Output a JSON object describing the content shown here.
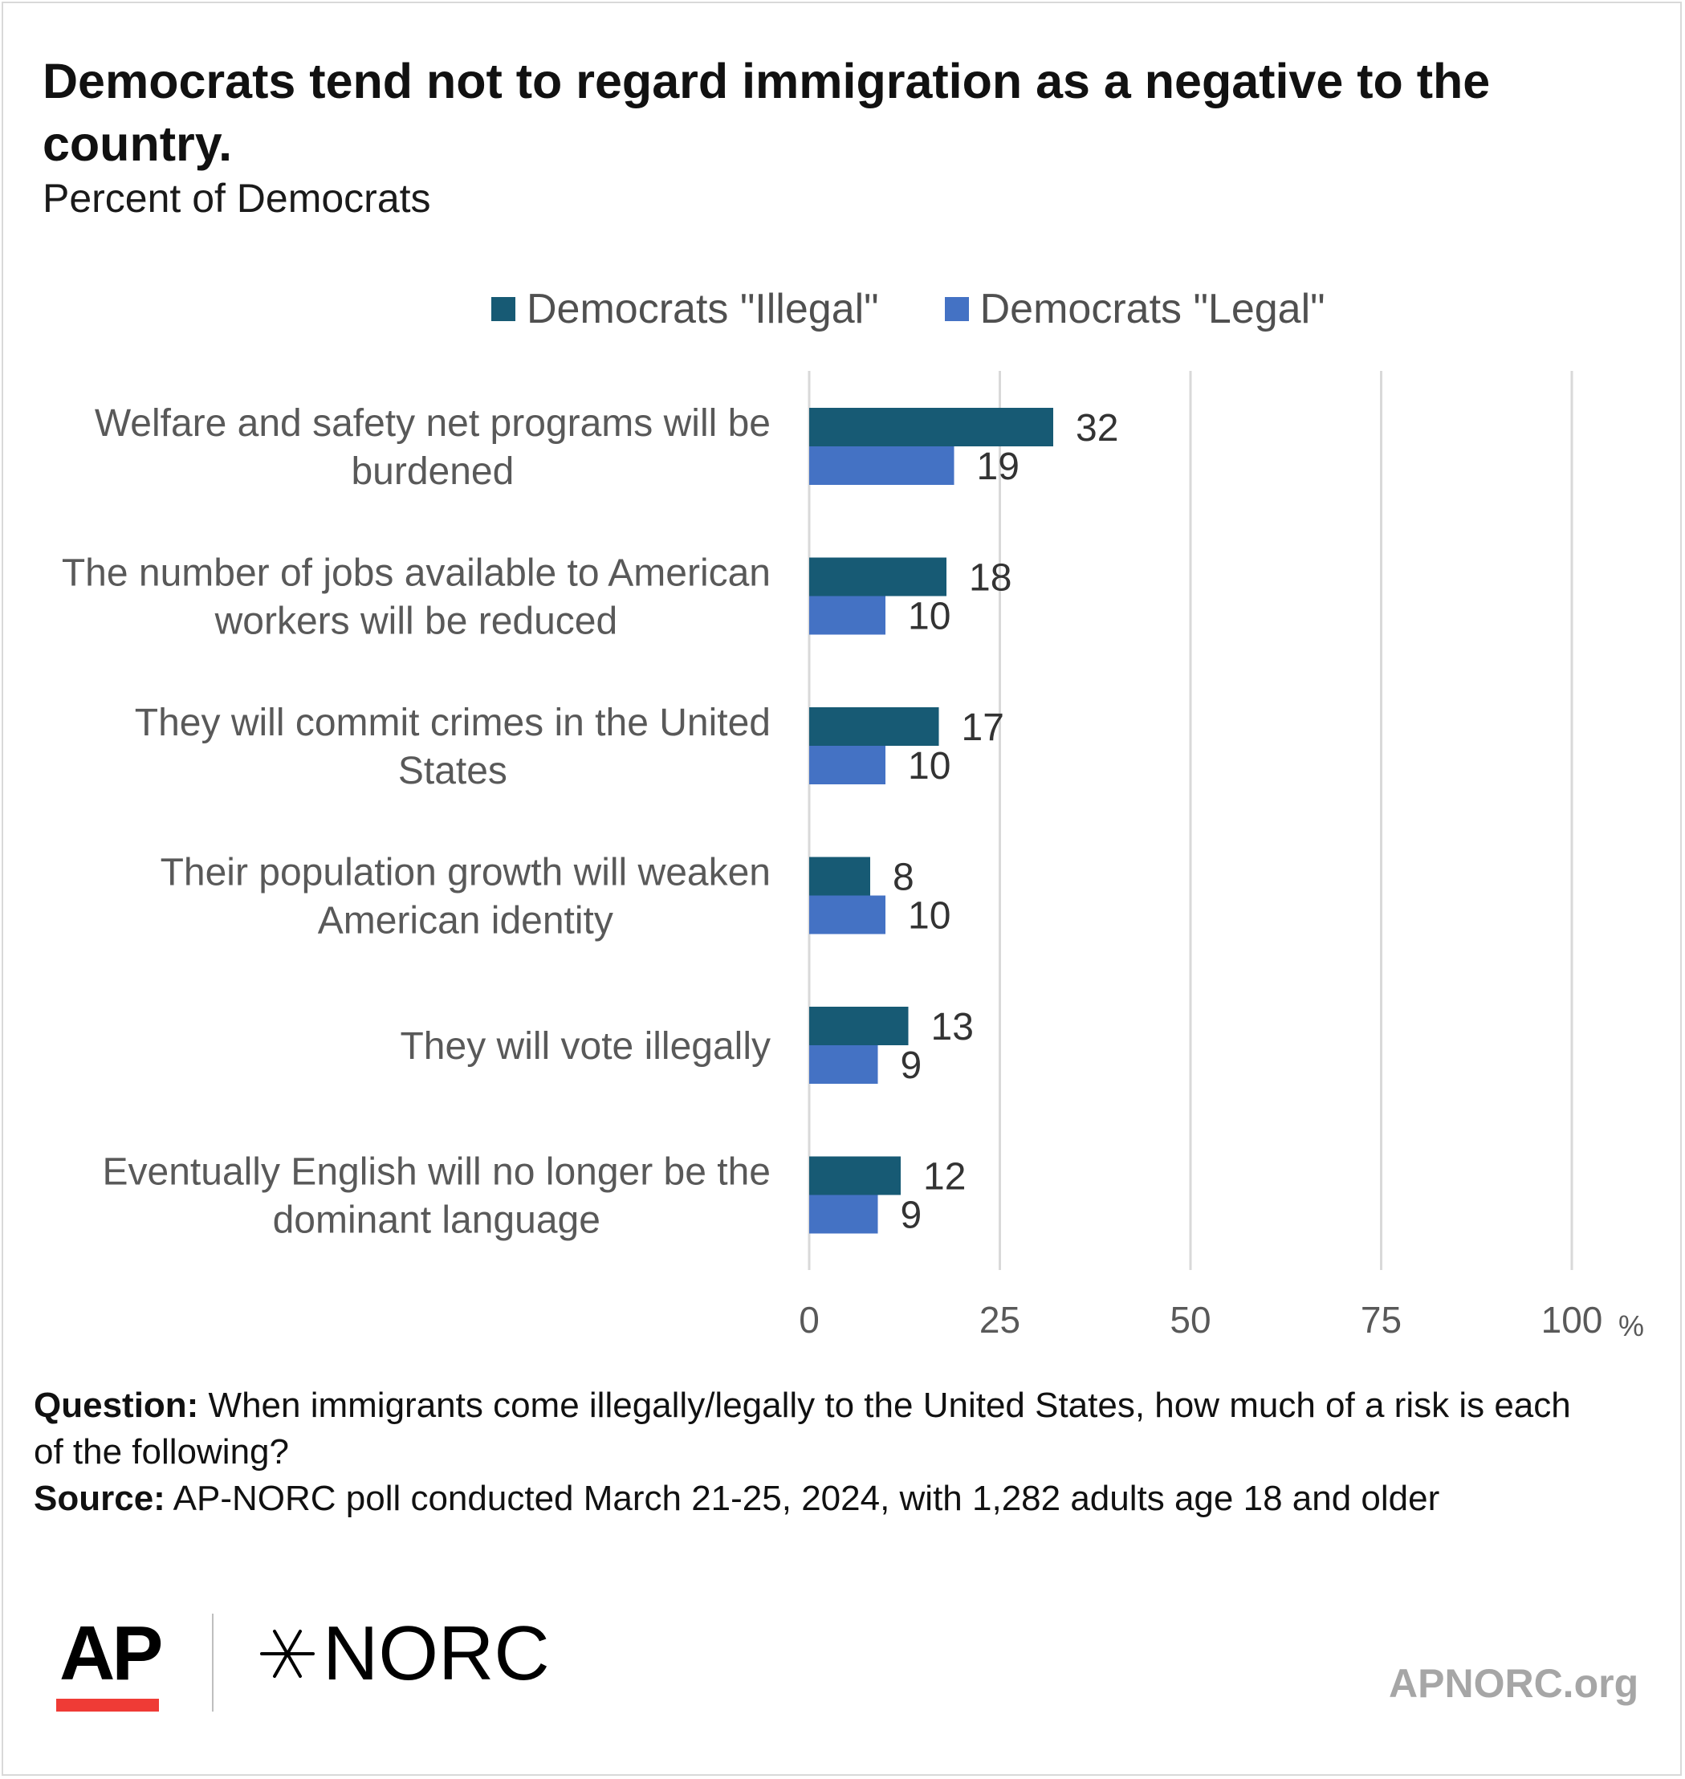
{
  "header": {
    "title": "Democrats tend not to regard immigration as a negative to the country.",
    "subtitle": "Percent of Democrats"
  },
  "colors": {
    "illegal": "#175a74",
    "legal": "#4472c4",
    "gridline": "#d9d9d9",
    "ap_red": "#ef3b36"
  },
  "chart_data": {
    "type": "bar",
    "orientation": "horizontal",
    "categories": [
      [
        "Welfare and safety net programs will be",
        "burdened"
      ],
      [
        "The number of jobs available to American",
        "workers will be reduced"
      ],
      [
        "They will commit crimes in the United",
        "States"
      ],
      [
        "Their population growth will weaken",
        "American identity"
      ],
      [
        "They will vote illegally"
      ],
      [
        "Eventually English will no longer be the",
        "dominant language"
      ]
    ],
    "series": [
      {
        "name": "Democrats \"Illegal\"",
        "values": [
          32,
          18,
          17,
          8,
          13,
          12
        ]
      },
      {
        "name": "Democrats \"Legal\"",
        "values": [
          19,
          10,
          10,
          10,
          9,
          9
        ]
      }
    ],
    "xlim": [
      0,
      100
    ],
    "xticks": [
      0,
      25,
      50,
      75,
      100
    ],
    "xtick_labels": [
      "0",
      "25",
      "50",
      "75",
      "100"
    ],
    "x_unit": "%",
    "grid": true,
    "legend_position": "top"
  },
  "notes": {
    "question_label": "Question:",
    "question_text": " When immigrants come illegally/legally to the United States, how much of a risk is each of the following?",
    "source_label": "Source:",
    "source_text": " AP-NORC poll conducted March 21-25, 2024, with 1,282 adults age 18 and older"
  },
  "footer": {
    "ap_logo": "AP",
    "norc_logo": "NORC",
    "site": "APNORC.org"
  }
}
